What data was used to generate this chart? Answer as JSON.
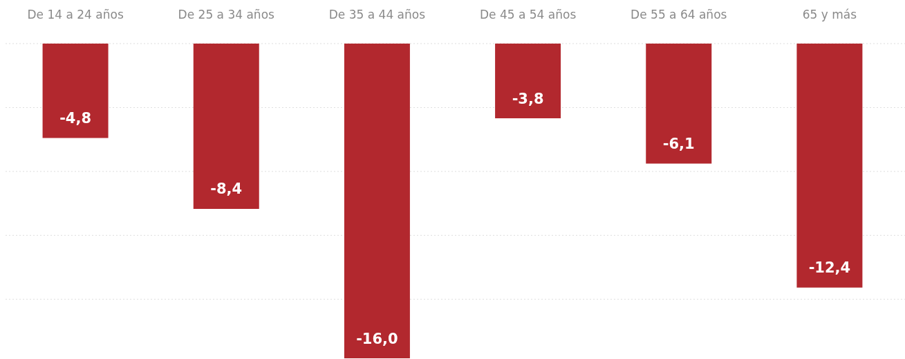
{
  "chart_data": {
    "type": "bar",
    "categories": [
      "De 14 a 24 años",
      "De 25 a 34 años",
      "De 35 a 44 años",
      "De 45 a 54 años",
      "De 55 a 64 años",
      "65 y más"
    ],
    "values": [
      -4.8,
      -8.4,
      -16.0,
      -3.8,
      -6.1,
      -12.4
    ],
    "value_labels": [
      "-4,8",
      "-8,4",
      "-16,0",
      "-3,8",
      "-6,1",
      "-12,4"
    ],
    "color": "#b2282e",
    "ylim": [
      -16,
      0
    ],
    "yticks": [
      {
        "value": 0,
        "label": null
      },
      {
        "value": -3.25,
        "label": null
      },
      {
        "value": -6.5,
        "label": null
      },
      {
        "value": -9.75,
        "label": null
      },
      {
        "value": -13,
        "label": null
      }
    ],
    "grid": "y",
    "tick_labels": "x"
  }
}
